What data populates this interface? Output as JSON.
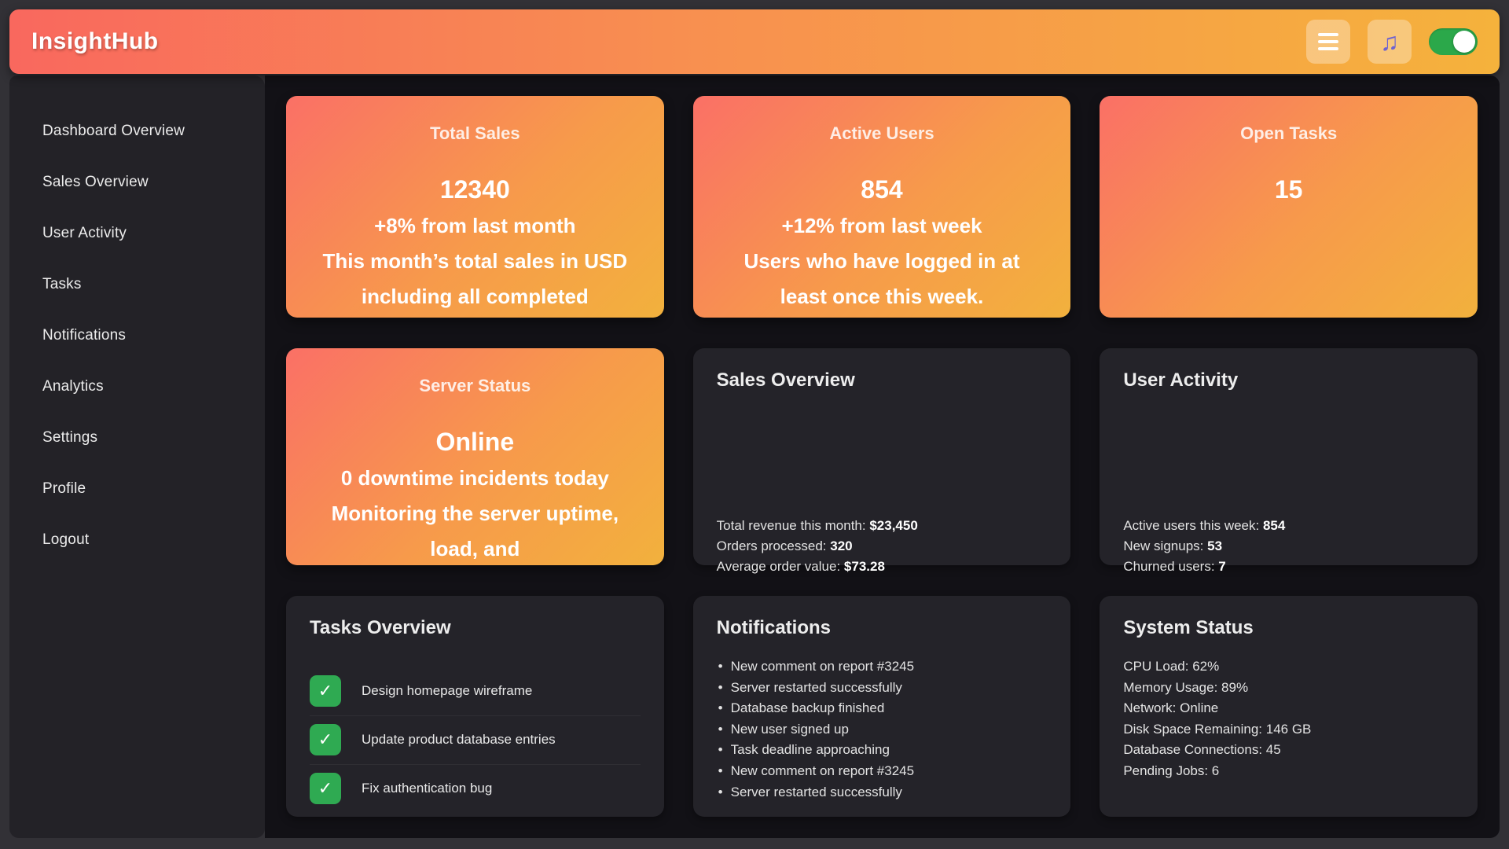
{
  "app": {
    "title": "InsightHub"
  },
  "header": {
    "menu_button": "hamburger",
    "music_button": "musical-notes",
    "music_glyph": "♫",
    "toggle_state": "on"
  },
  "colors": {
    "header_gradient_start": "#f9685e",
    "header_gradient_end": "#f5b23c",
    "card_gradient_start": "#fa7066",
    "card_gradient_end": "#f2b13d",
    "sidebar_bg": "#232227",
    "main_bg": "#121116",
    "info_card_bg": "#242329",
    "toggle_green": "#2ba84a",
    "checkbox_green": "#2faa52",
    "music_purple": "#6f63cf"
  },
  "sidebar": {
    "items": [
      {
        "label": "Dashboard Overview"
      },
      {
        "label": "Sales Overview"
      },
      {
        "label": "User Activity"
      },
      {
        "label": "Tasks"
      },
      {
        "label": "Notifications"
      },
      {
        "label": "Analytics"
      },
      {
        "label": "Settings"
      },
      {
        "label": "Profile"
      },
      {
        "label": "Logout"
      }
    ]
  },
  "stat_cards": [
    {
      "title": "Total Sales",
      "value": "12340",
      "delta": "+8% from last month",
      "description": "This month’s total sales in USD including all completed"
    },
    {
      "title": "Active Users",
      "value": "854",
      "delta": "+12% from last week",
      "description": "Users who have logged in at least once this week."
    },
    {
      "title": "Open Tasks",
      "value": "15",
      "delta": "",
      "description": ""
    },
    {
      "title": "Server Status",
      "value": "Online",
      "delta": "0 downtime incidents today",
      "description": "Monitoring the server uptime, load, and"
    }
  ],
  "info_cards": {
    "sales_overview": {
      "title": "Sales Overview",
      "stats": [
        {
          "label": "Total revenue this month:",
          "value": "$23,450"
        },
        {
          "label": "Orders processed:",
          "value": "320"
        },
        {
          "label": "Average order value:",
          "value": "$73.28"
        }
      ]
    },
    "user_activity": {
      "title": "User Activity",
      "stats": [
        {
          "label": "Active users this week:",
          "value": "854"
        },
        {
          "label": "New signups:",
          "value": "53"
        },
        {
          "label": "Churned users:",
          "value": "7"
        }
      ]
    },
    "tasks_overview": {
      "title": "Tasks Overview",
      "check_glyph": "✓",
      "tasks": [
        "Design homepage wireframe",
        "Update product database entries",
        "Fix authentication bug"
      ]
    },
    "notifications": {
      "title": "Notifications",
      "items": [
        "New comment on report #3245",
        "Server restarted successfully",
        "Database backup finished",
        "New user signed up",
        "Task deadline approaching",
        "New comment on report #3245",
        "Server restarted successfully"
      ]
    },
    "system_status": {
      "title": "System Status",
      "lines": [
        "CPU Load: 62%",
        "Memory Usage: 89%",
        "Network: Online",
        "Disk Space Remaining: 146 GB",
        "Database Connections: 45",
        "Pending Jobs: 6"
      ]
    }
  }
}
